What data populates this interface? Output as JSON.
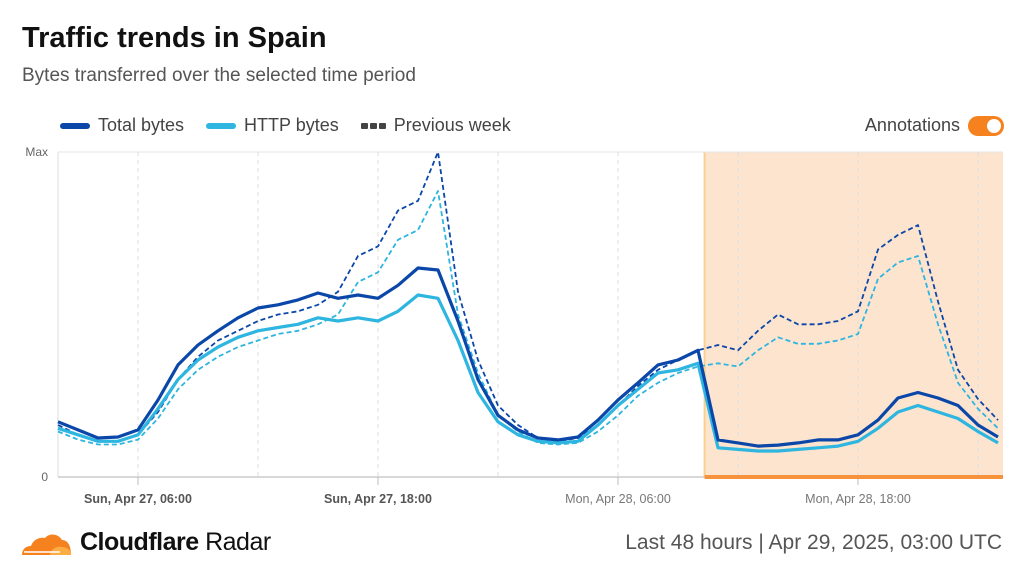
{
  "header": {
    "title": "Traffic trends in Spain",
    "subtitle": "Bytes transferred over the selected time period"
  },
  "annotations_toggle": {
    "label": "Annotations",
    "on": true
  },
  "footer": {
    "brand_bold": "Cloudflare",
    "brand_light": "Radar",
    "range": "Last 48 hours",
    "separator": "|",
    "timestamp": "Apr 29, 2025, 03:00 UTC"
  },
  "colors": {
    "total": "#0a47a9",
    "http": "#2eb5e0",
    "annotation_fill": "#fde4cf",
    "annotation_border": "#fbcf8e",
    "annotation_bar": "#f6923b",
    "toggle": "#f6821f"
  },
  "chart_data": {
    "type": "line",
    "title": "Traffic trends in Spain",
    "subtitle": "Bytes transferred over the selected time period",
    "x_start": "Sun, Apr 27, 02:00",
    "x_step": "1 hour",
    "y_ticks": [
      {
        "value": 100,
        "label": "Max"
      },
      {
        "value": 0,
        "label": "0"
      }
    ],
    "ylim": [
      0,
      100
    ],
    "x_ticks": [
      {
        "index": 4,
        "label": "Sun, Apr 27, 06:00",
        "bold": true
      },
      {
        "index": 16,
        "label": "Sun, Apr 27, 18:00",
        "bold": true
      },
      {
        "index": 28,
        "label": "Mon, Apr 28, 06:00",
        "bold": false
      },
      {
        "index": 40,
        "label": "Mon, Apr 28, 18:00",
        "bold": false
      }
    ],
    "grid": "vertical dashed every 6 hours",
    "legend_placement": "top-left",
    "annotation": {
      "start_index": 32.33,
      "end": "end of range"
    },
    "series": [
      {
        "name": "Total bytes",
        "style": "solid",
        "color": "#0a47a9",
        "values": [
          17,
          14.5,
          12,
          12.3,
          14.5,
          23.7,
          34.5,
          40.6,
          45,
          49,
          52,
          53,
          54.5,
          56.6,
          55,
          56,
          55,
          59,
          64.3,
          63.7,
          48,
          30,
          19,
          14.5,
          12,
          11.4,
          12.3,
          17.5,
          23.7,
          29,
          34.5,
          36,
          39,
          11.4,
          10.5,
          9.5,
          9.8,
          10.5,
          11.4,
          11.4,
          13,
          17.5,
          24.3,
          26,
          24.3,
          22,
          16,
          12.3
        ]
      },
      {
        "name": "HTTP bytes",
        "style": "solid",
        "color": "#2eb5e0",
        "values": [
          15,
          13,
          11,
          11,
          13,
          21,
          30,
          36,
          40,
          43,
          45,
          46,
          47,
          49,
          48,
          49,
          48,
          51,
          56,
          55,
          42,
          26,
          17,
          13,
          11,
          10.5,
          11,
          16,
          22,
          27,
          32,
          33,
          35,
          9,
          8.5,
          8,
          8,
          8.5,
          9,
          9.5,
          11,
          15,
          20,
          22,
          20,
          18,
          14,
          10.5
        ]
      },
      {
        "name": "Previous week",
        "style": "dashed",
        "color": "#0a47a9",
        "values": [
          16,
          13,
          11,
          11,
          13,
          20,
          30,
          37,
          42,
          45,
          48,
          50,
          51,
          53,
          57,
          68,
          71,
          82,
          85,
          100,
          57,
          36,
          22,
          16,
          12,
          11,
          12,
          16,
          22,
          28,
          33,
          36,
          39,
          40.6,
          39,
          45,
          50,
          47,
          47,
          48,
          51,
          70,
          74.5,
          77.5,
          54,
          33,
          24,
          17.5
        ]
      },
      {
        "style": "dashed",
        "color": "#2eb5e0",
        "values": [
          14,
          11.5,
          10,
          10,
          11.5,
          18,
          27,
          33,
          37,
          40,
          42,
          44,
          45,
          47,
          50,
          60,
          63,
          73,
          76,
          88,
          50,
          32,
          19,
          14,
          10.5,
          10,
          10.5,
          14,
          19,
          25,
          29,
          32,
          34,
          35,
          34,
          39,
          43,
          41,
          41,
          42,
          44,
          61,
          66,
          68,
          47,
          29,
          21,
          15
        ]
      }
    ]
  }
}
